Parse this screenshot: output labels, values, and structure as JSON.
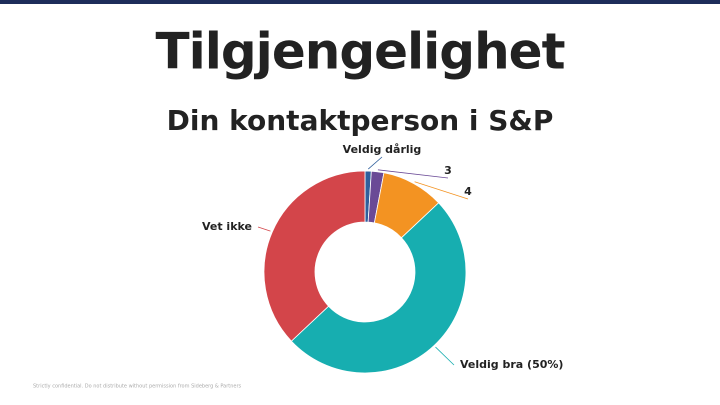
{
  "chart_data": {
    "type": "donut",
    "title": "Tilgjengelighet",
    "subtitle": "Din kontaktperson i S&P",
    "categories": [
      "Veldig dårlig",
      "3",
      "4",
      "Veldig bra (50%)",
      "Vet ikke"
    ],
    "values": [
      1,
      2,
      10,
      50,
      37
    ],
    "colors": [
      "#2f5f9c",
      "#6a4a96",
      "#f39322",
      "#17aeb0",
      "#d3454a"
    ]
  },
  "footer": "Strictly confidential. Do not distribute without permission from Sideberg & Partners"
}
